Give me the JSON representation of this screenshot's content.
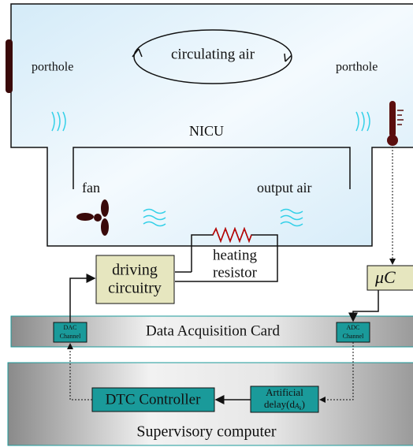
{
  "incubator": {
    "label": "NICU",
    "flow": "circulating air",
    "porthole_left": "porthole",
    "porthole_right": "porthole",
    "fan": "fan",
    "output": "output air"
  },
  "heater": {
    "lines": [
      "heating",
      "resistor"
    ]
  },
  "driver": {
    "lines": [
      "driving",
      "circuitry"
    ]
  },
  "micro": {
    "label": "μC"
  },
  "daq": {
    "label": "Data Acquisition Card",
    "dac": [
      "DAC",
      "Channel"
    ],
    "adc": [
      "ADC",
      "Channel"
    ]
  },
  "computer": {
    "label": "Supervisory computer",
    "controller": "DTC Controller",
    "delay": [
      "Artificial",
      "delay(d",
      "A",
      "k",
      ")"
    ]
  }
}
